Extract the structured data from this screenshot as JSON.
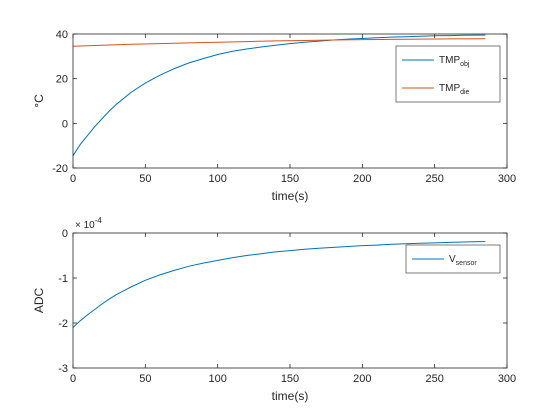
{
  "chart_data": [
    {
      "type": "line",
      "title": "",
      "xlabel": "time(s)",
      "ylabel": "°C",
      "xlim": [
        0,
        300
      ],
      "ylim": [
        -20,
        40
      ],
      "xticks": [
        0,
        50,
        100,
        150,
        200,
        250,
        300
      ],
      "xtick_labels": [
        "0",
        "50",
        "100",
        "150",
        "200",
        "250",
        "300"
      ],
      "yticks": [
        -20,
        0,
        20,
        40
      ],
      "ytick_labels": [
        "-20",
        "0",
        "20",
        "40"
      ],
      "grid": false,
      "legend_position": "top-right",
      "series": [
        {
          "name": "TMP",
          "name_sub": "obj",
          "color": "#0072bd",
          "x": [
            0,
            5,
            10,
            15,
            20,
            25,
            30,
            40,
            50,
            60,
            70,
            80,
            90,
            100,
            110,
            120,
            130,
            140,
            150,
            160,
            170,
            180,
            190,
            200,
            210,
            220,
            230,
            240,
            250,
            260,
            270,
            280,
            285
          ],
          "y": [
            -14.5,
            -9.5,
            -5.5,
            -1.5,
            2.0,
            5.5,
            8.5,
            13.8,
            18.0,
            21.5,
            24.5,
            27.0,
            29.0,
            30.8,
            32.2,
            33.3,
            34.2,
            35.0,
            35.7,
            36.3,
            36.8,
            37.3,
            37.7,
            38.0,
            38.3,
            38.6,
            38.8,
            39.0,
            39.2,
            39.3,
            39.4,
            39.5,
            39.5
          ]
        },
        {
          "name": "TMP",
          "name_sub": "die",
          "color": "#d95319",
          "x": [
            0,
            20,
            40,
            60,
            80,
            100,
            120,
            140,
            160,
            180,
            200,
            220,
            240,
            260,
            285
          ],
          "y": [
            34.5,
            35.0,
            35.4,
            35.7,
            36.0,
            36.3,
            36.6,
            36.9,
            37.1,
            37.3,
            37.5,
            37.6,
            37.7,
            37.8,
            37.9
          ]
        }
      ]
    },
    {
      "type": "line",
      "title": "",
      "xlabel": "time(s)",
      "ylabel": "ADC",
      "axis_multiplier": "× 10",
      "axis_multiplier_exp": "-4",
      "xlim": [
        0,
        300
      ],
      "ylim": [
        -3,
        0
      ],
      "xticks": [
        0,
        50,
        100,
        150,
        200,
        250,
        300
      ],
      "xtick_labels": [
        "0",
        "50",
        "100",
        "150",
        "200",
        "250",
        "300"
      ],
      "yticks": [
        -3,
        -2,
        -1,
        0
      ],
      "ytick_labels": [
        "-3",
        "-2",
        "-1",
        "0"
      ],
      "grid": false,
      "legend_position": "top-right",
      "series": [
        {
          "name": "V",
          "name_sub": "sensor",
          "color": "#0072bd",
          "x": [
            0,
            5,
            10,
            15,
            20,
            25,
            30,
            40,
            50,
            60,
            70,
            80,
            90,
            100,
            110,
            120,
            130,
            140,
            150,
            160,
            170,
            180,
            190,
            200,
            210,
            220,
            230,
            240,
            250,
            260,
            270,
            280,
            285
          ],
          "y": [
            -2.1,
            -1.95,
            -1.82,
            -1.7,
            -1.58,
            -1.47,
            -1.37,
            -1.2,
            -1.05,
            -0.93,
            -0.83,
            -0.74,
            -0.67,
            -0.61,
            -0.55,
            -0.5,
            -0.46,
            -0.42,
            -0.39,
            -0.36,
            -0.34,
            -0.32,
            -0.3,
            -0.28,
            -0.27,
            -0.25,
            -0.24,
            -0.23,
            -0.22,
            -0.21,
            -0.2,
            -0.19,
            -0.19
          ]
        }
      ]
    }
  ]
}
